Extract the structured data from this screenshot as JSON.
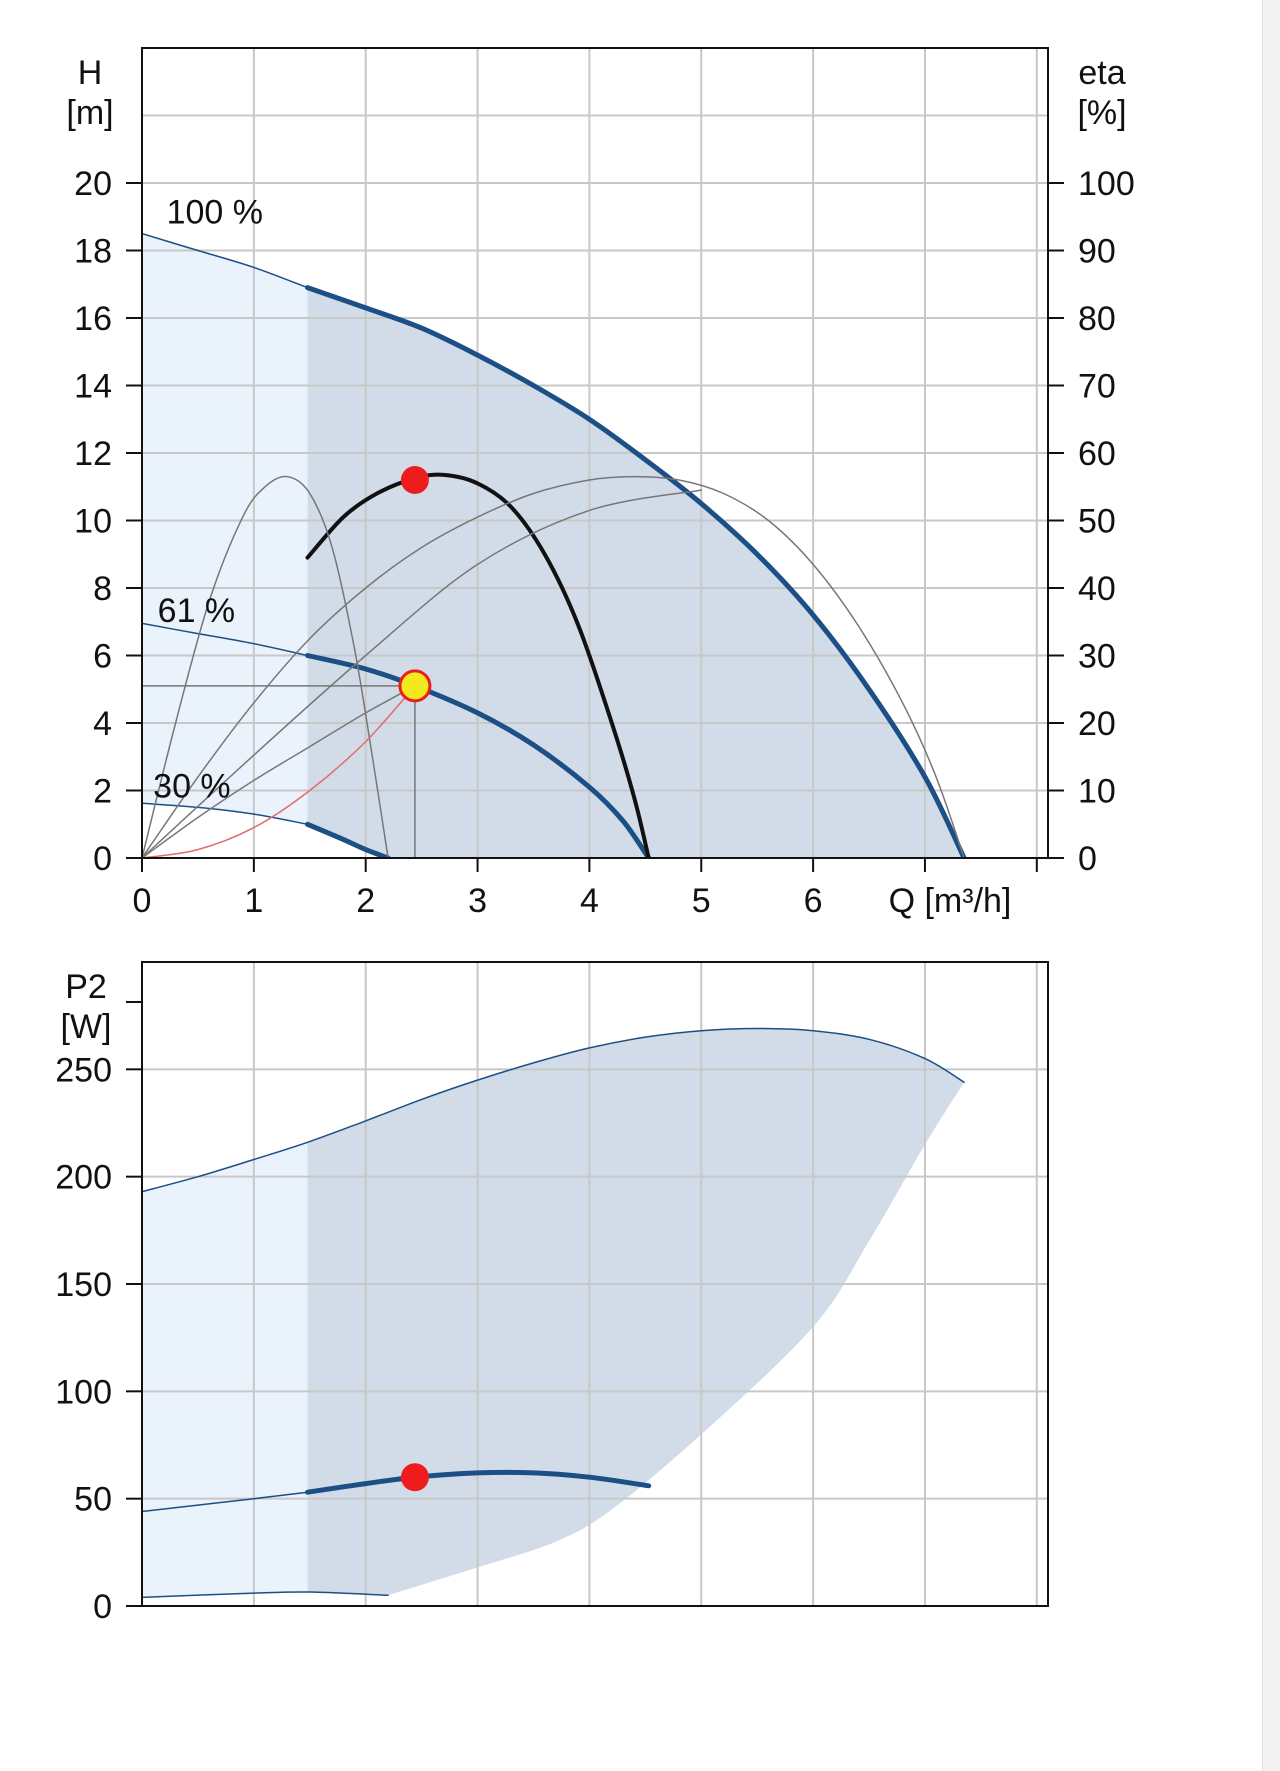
{
  "colors": {
    "region_light": "#eaf2fb",
    "region_dark": "#d1dce8",
    "curve_blue": "#1c4f85",
    "curve_black": "#111111",
    "thin_line": "#777777",
    "system_curve": "#e36b6b",
    "duty_point": "#f2ea1f",
    "marker_red": "#ee1c1c"
  },
  "chart_data": [
    {
      "type": "line",
      "title": "",
      "xlabel": "Q [m³/h]",
      "ylabel_line1": "H",
      "ylabel_line2": "[m]",
      "y2label_line1": "eta",
      "y2label_line2": "[%]",
      "xlim": [
        0,
        8.1
      ],
      "ylim": [
        0,
        24
      ],
      "y2lim": [
        0,
        120
      ],
      "x_ticks": [
        0,
        1,
        2,
        3,
        4,
        5,
        6
      ],
      "y_ticks": [
        0,
        2,
        4,
        6,
        8,
        10,
        12,
        14,
        16,
        18,
        20
      ],
      "y2_ticks": [
        0,
        10,
        20,
        30,
        40,
        50,
        60,
        70,
        80,
        90,
        100
      ],
      "grid": true,
      "series": [
        {
          "label": "100 %",
          "label_at": [
            0.22,
            18.8
          ],
          "style": "thick-blue",
          "x": [
            1.48,
            2.0,
            2.5,
            3.0,
            3.5,
            4.0,
            4.5,
            5.0,
            5.5,
            6.0,
            6.5,
            7.0,
            7.35
          ],
          "y": [
            16.9,
            16.3,
            15.7,
            14.9,
            14.0,
            13.0,
            11.8,
            10.5,
            9.0,
            7.2,
            5.0,
            2.4,
            0.0
          ]
        },
        {
          "style": "thin-blue",
          "x": [
            0.0,
            0.5,
            1.0,
            1.48
          ],
          "y": [
            18.5,
            18.0,
            17.5,
            16.9
          ]
        },
        {
          "label": "61 %",
          "label_at": [
            0.14,
            7.0
          ],
          "style": "thick-blue",
          "x": [
            1.48,
            2.0,
            2.44,
            3.0,
            3.5,
            4.0,
            4.3,
            4.53
          ],
          "y": [
            6.0,
            5.6,
            5.1,
            4.3,
            3.35,
            2.1,
            1.1,
            0.0
          ]
        },
        {
          "style": "thin-blue",
          "x": [
            0.0,
            0.5,
            1.0,
            1.48
          ],
          "y": [
            6.95,
            6.65,
            6.35,
            6.0
          ]
        },
        {
          "label": "30 %",
          "label_at": [
            0.1,
            1.8
          ],
          "style": "thick-blue",
          "x": [
            1.48,
            1.8,
            2.0,
            2.2
          ],
          "y": [
            1.0,
            0.55,
            0.25,
            0.0
          ]
        },
        {
          "style": "thin-blue",
          "x": [
            0.0,
            0.5,
            1.0,
            1.48
          ],
          "y": [
            1.62,
            1.5,
            1.3,
            1.0
          ]
        },
        {
          "name": "eta 61 %",
          "style": "black",
          "x": [
            1.48,
            1.8,
            2.1,
            2.44,
            2.7,
            3.0,
            3.3,
            3.6,
            3.9,
            4.2,
            4.4,
            4.53
          ],
          "y": [
            8.9,
            10.1,
            10.8,
            11.25,
            11.35,
            11.1,
            10.4,
            9.0,
            6.9,
            4.0,
            1.8,
            0.0
          ]
        },
        {
          "name": "eta 100 %",
          "style": "thin",
          "x": [
            0.0,
            0.5,
            1.0,
            1.5,
            2.0,
            2.5,
            3.0,
            3.5,
            4.0,
            4.4,
            4.8,
            5.2,
            5.6,
            6.0,
            6.4,
            6.8,
            7.1,
            7.35
          ],
          "y": [
            0.0,
            2.4,
            4.6,
            6.5,
            8.0,
            9.2,
            10.1,
            10.8,
            11.2,
            11.3,
            11.2,
            10.8,
            10.0,
            8.7,
            6.9,
            4.6,
            2.4,
            0.0
          ]
        },
        {
          "name": "eta 30 %",
          "style": "thin",
          "x": [
            0.0,
            0.3,
            0.6,
            0.9,
            1.1,
            1.3,
            1.5,
            1.7,
            1.9,
            2.05,
            2.2
          ],
          "y": [
            0.0,
            4.0,
            7.6,
            10.1,
            11.0,
            11.3,
            10.8,
            9.2,
            6.2,
            3.2,
            0.0
          ]
        },
        {
          "name": "speed line 100",
          "style": "thin",
          "x": [
            0.0,
            1.0,
            2.0,
            3.0,
            4.0,
            5.0
          ],
          "y": [
            0.0,
            3.05,
            6.0,
            8.7,
            10.3,
            10.9
          ]
        },
        {
          "name": "speed line 61",
          "style": "thin",
          "x": [
            0.0,
            0.5,
            1.0,
            1.5,
            2.0,
            2.44
          ],
          "y": [
            0.0,
            1.2,
            2.3,
            3.3,
            4.3,
            5.1
          ]
        },
        {
          "name": "system curve",
          "style": "red",
          "x": [
            0.0,
            0.5,
            1.0,
            1.5,
            2.0,
            2.44
          ],
          "y": [
            0.0,
            0.25,
            0.9,
            2.0,
            3.45,
            5.1
          ]
        }
      ],
      "duty_point": {
        "x": 2.44,
        "y": 5.1
      },
      "eta_marker": {
        "x": 2.44,
        "y": 11.2
      }
    },
    {
      "type": "area",
      "title": "",
      "xlabel": "",
      "ylabel_line1": "P2",
      "ylabel_line2": "[W]",
      "xlim": [
        0,
        8.1
      ],
      "ylim": [
        0,
        300
      ],
      "y_ticks": [
        0,
        50,
        100,
        150,
        200,
        250
      ],
      "grid": true,
      "series": [
        {
          "name": "P2 100 %",
          "style": "thin-blue",
          "x": [
            0.0,
            0.5,
            1.0,
            1.48,
            2.0,
            2.5,
            3.0,
            3.5,
            4.0,
            4.5,
            5.0,
            5.5,
            6.0,
            6.5,
            7.0,
            7.35
          ],
          "y": [
            193,
            200,
            208,
            216,
            226,
            236,
            245,
            253,
            260,
            265,
            268,
            269,
            268,
            264,
            255,
            244
          ]
        },
        {
          "name": "P2 61 %",
          "style": "thick-blue",
          "x": [
            1.48,
            2.0,
            2.44,
            3.0,
            3.5,
            4.0,
            4.53
          ],
          "y": [
            53,
            57,
            60,
            62,
            62,
            60,
            56
          ]
        },
        {
          "style": "thin-blue",
          "x": [
            0.0,
            0.5,
            1.0,
            1.48
          ],
          "y": [
            44,
            47,
            50,
            53
          ]
        },
        {
          "name": "P2 30 %",
          "style": "thin-blue",
          "x": [
            0.0,
            1.0,
            1.5,
            2.2
          ],
          "y": [
            4,
            6,
            6.5,
            5
          ]
        }
      ],
      "region_bottom": {
        "x": [
          2.2,
          3.0,
          3.7,
          4.2,
          5.0,
          6.0,
          6.5,
          7.0,
          7.35
        ],
        "y": [
          5,
          18,
          30,
          45,
          80,
          130,
          170,
          215,
          244
        ]
      },
      "marker": {
        "x": 2.44,
        "y": 60
      }
    }
  ]
}
